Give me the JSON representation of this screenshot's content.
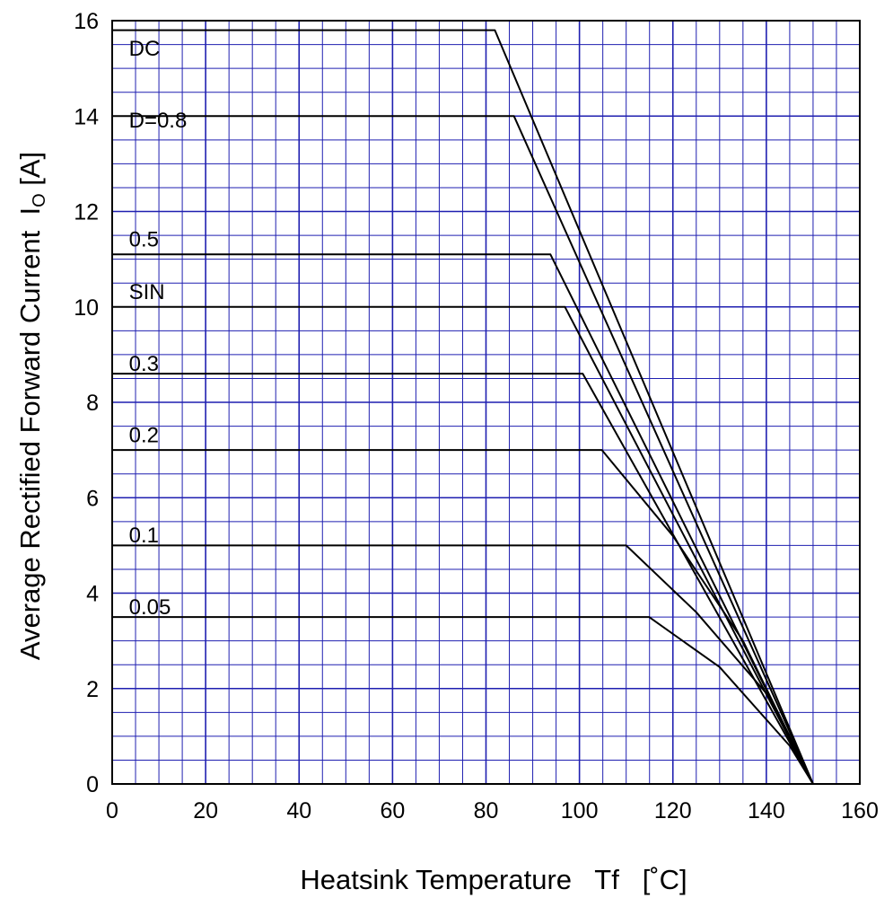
{
  "chart_data": {
    "type": "line",
    "xlabel": "Heatsink Temperature   Tf   [˚C]",
    "ylabel_main": "Average Rectified Forward Current  I",
    "ylabel_sub": "O",
    "ylabel_unit": " [A]",
    "xlim": [
      0,
      160
    ],
    "ylim": [
      0,
      16
    ],
    "x_major_ticks": [
      "0",
      "20",
      "40",
      "60",
      "80",
      "100",
      "120",
      "140",
      "160"
    ],
    "y_major_ticks": [
      "0",
      "2",
      "4",
      "6",
      "8",
      "10",
      "12",
      "14",
      "16"
    ],
    "grid": true,
    "colors": {
      "grid": "#1f1fb0",
      "curve": "#000000",
      "frame": "#000000"
    },
    "series": [
      {
        "name": "DC",
        "points": [
          [
            0,
            15.8
          ],
          [
            81.9,
            15.8
          ],
          [
            150,
            0
          ]
        ],
        "label_at": [
          3,
          15.3
        ]
      },
      {
        "name": "D=0.8",
        "points": [
          [
            0,
            14.0
          ],
          [
            86,
            14.0
          ],
          [
            150,
            0
          ]
        ],
        "label_at": [
          3,
          13.8
        ]
      },
      {
        "name": "0.5",
        "points": [
          [
            0,
            11.1
          ],
          [
            93.8,
            11.1
          ],
          [
            150,
            0
          ]
        ],
        "label_at": [
          3,
          11.3
        ]
      },
      {
        "name": "SIN",
        "points": [
          [
            0,
            10.0
          ],
          [
            96.9,
            10.0
          ],
          [
            150,
            0
          ]
        ],
        "label_at": [
          3,
          10.2
        ]
      },
      {
        "name": "0.3",
        "points": [
          [
            0,
            8.6
          ],
          [
            100.7,
            8.6
          ],
          [
            150,
            0
          ]
        ],
        "label_at": [
          3,
          8.7
        ]
      },
      {
        "name": "0.2",
        "points": [
          [
            0,
            7.0
          ],
          [
            104.8,
            7.0
          ],
          [
            120,
            5.2
          ],
          [
            135,
            3.0
          ],
          [
            150,
            0
          ]
        ],
        "label_at": [
          3,
          7.2
        ]
      },
      {
        "name": "0.1",
        "points": [
          [
            0,
            5.0
          ],
          [
            110,
            5.0
          ],
          [
            125,
            3.6
          ],
          [
            140,
            1.9
          ],
          [
            150,
            0
          ]
        ],
        "label_at": [
          3,
          5.1
        ]
      },
      {
        "name": "0.05",
        "points": [
          [
            0,
            3.5
          ],
          [
            114.9,
            3.5
          ],
          [
            130,
            2.45
          ],
          [
            145,
            0.8
          ],
          [
            150,
            0
          ]
        ],
        "label_at": [
          3,
          3.6
        ]
      }
    ]
  }
}
